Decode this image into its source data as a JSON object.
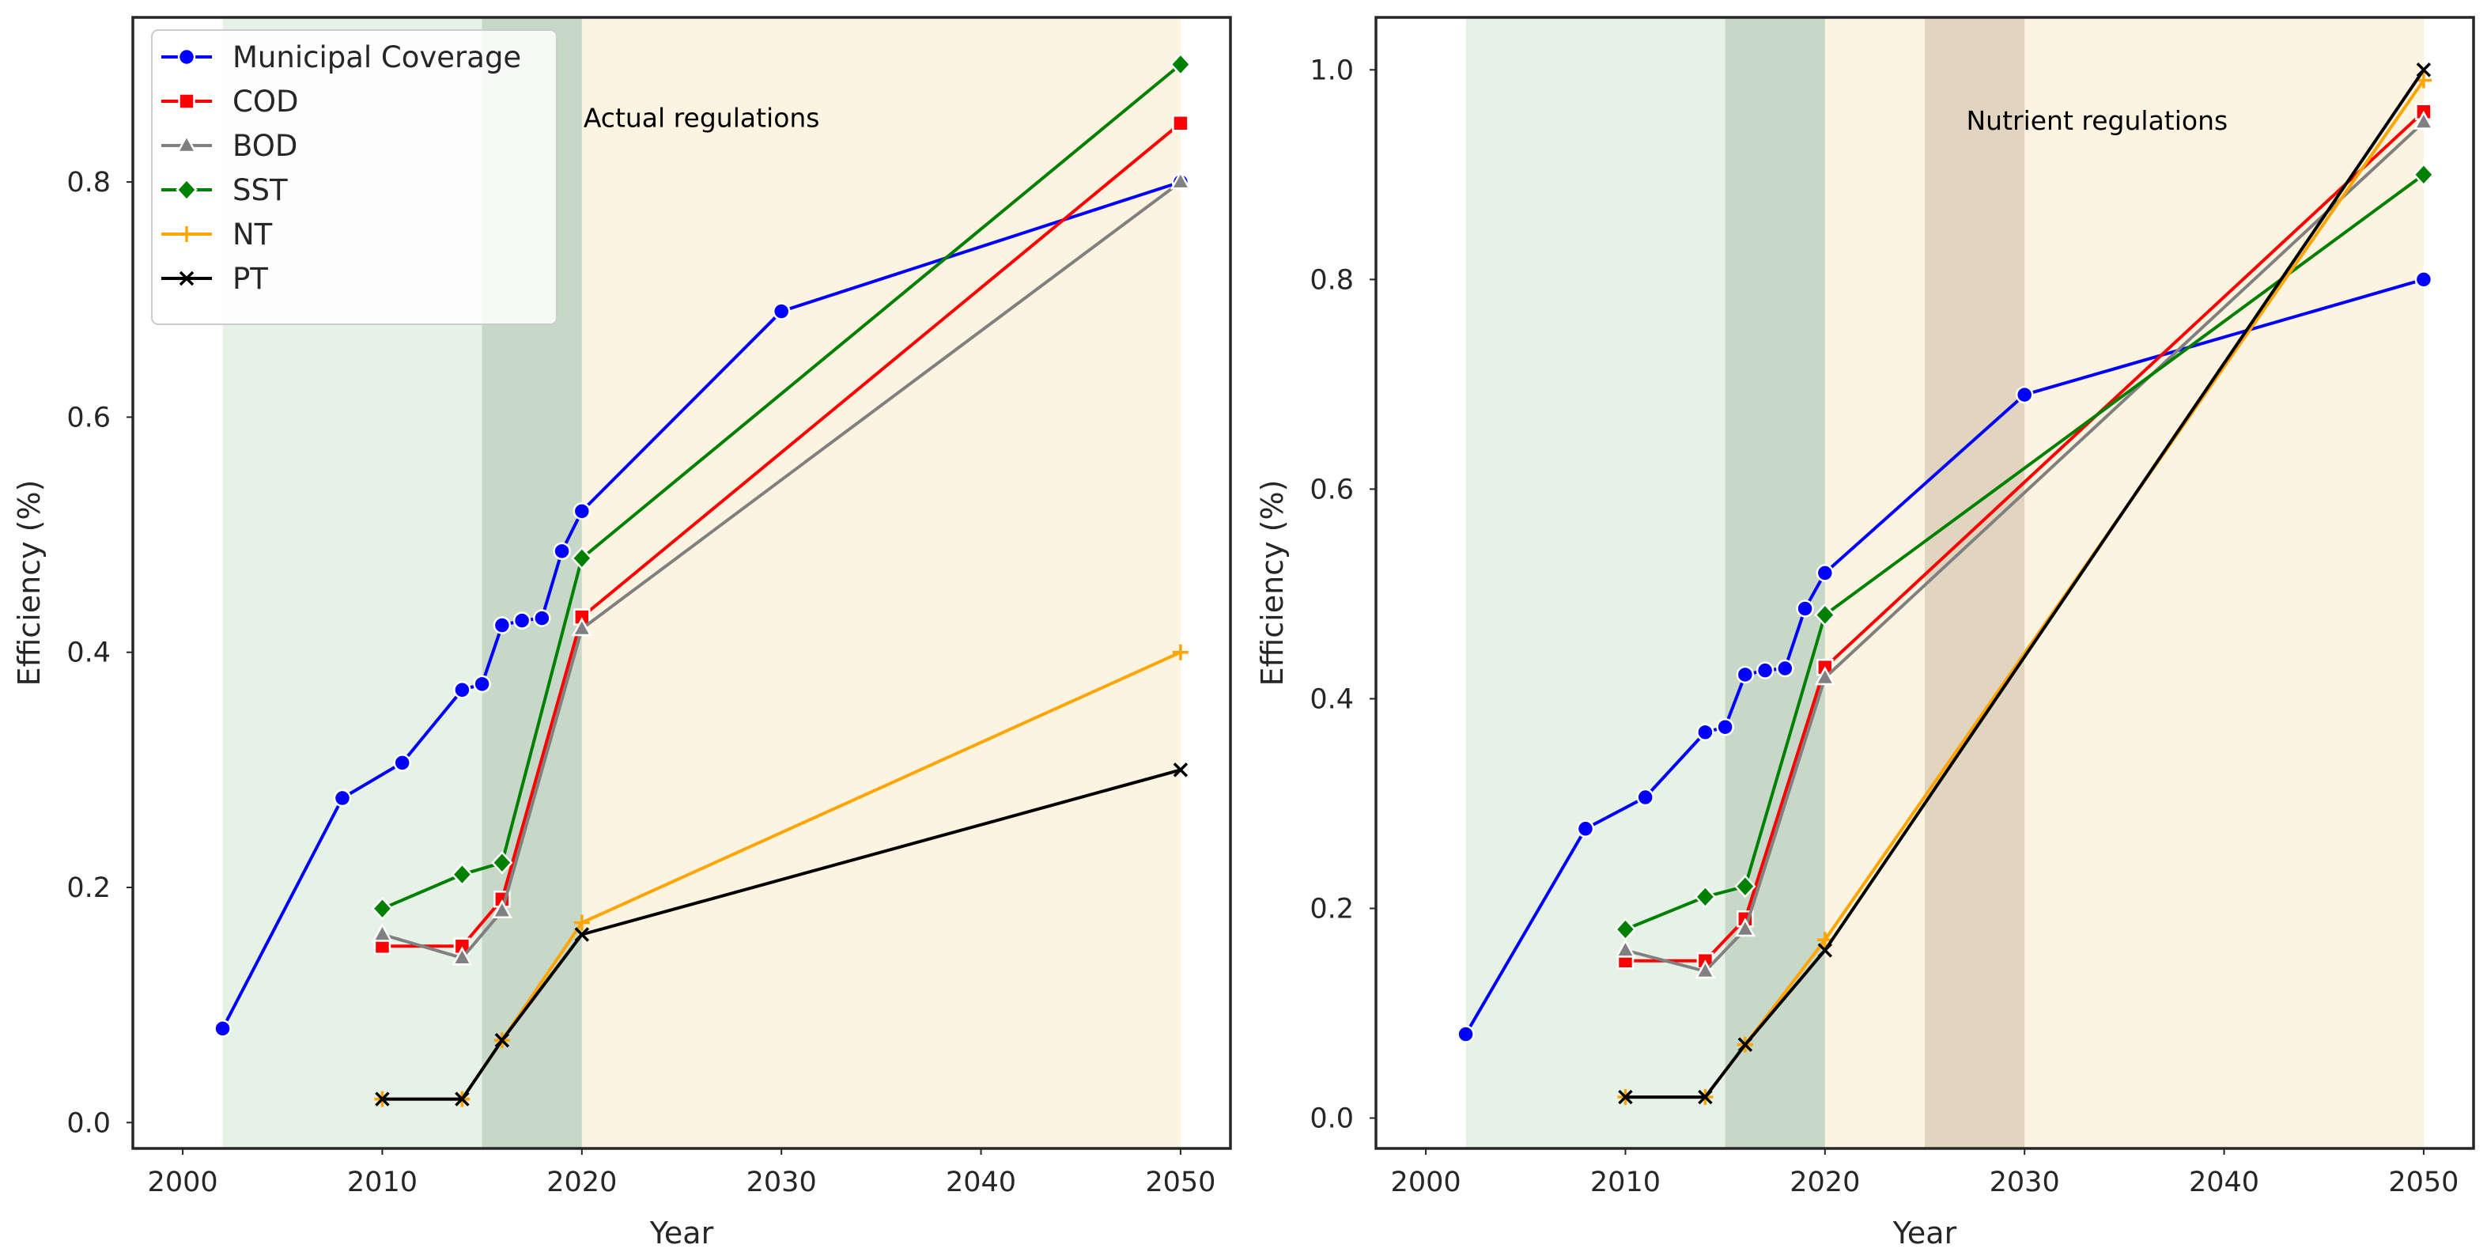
{
  "chart_data": [
    {
      "type": "line",
      "xlabel": "Year",
      "ylabel": "Efficiency (%)",
      "xlim": [
        1997.5,
        2052.5
      ],
      "ylim": [
        -0.022,
        0.94
      ],
      "xticks": [
        2000,
        2010,
        2020,
        2030,
        2040,
        2050
      ],
      "xtick_labels": [
        "2000",
        "2010",
        "2020",
        "2030",
        "2040",
        "2050"
      ],
      "yticks": [
        0.0,
        0.2,
        0.4,
        0.6,
        0.8
      ],
      "ytick_labels": [
        "0.0",
        "0.2",
        "0.4",
        "0.6",
        "0.8"
      ],
      "grid": false,
      "legend_position": "top-left",
      "spans": [
        {
          "from": 2002,
          "to": 2020,
          "color": "#b8d9b8",
          "opacity": 0.35
        },
        {
          "from": 2015,
          "to": 2020,
          "color": "#8fa88f",
          "opacity": 0.35
        },
        {
          "from": 2020,
          "to": 2050,
          "color": "#fbe5bd",
          "opacity": 0.45
        }
      ],
      "annotation": {
        "text": "Actual regulations",
        "x": 2020,
        "y": 0.855
      },
      "series": [
        {
          "name": "Municipal Coverage",
          "color": "#0000ff",
          "marker": "circle",
          "x": [
            2002,
            2008,
            2011,
            2014,
            2015,
            2016,
            2017,
            2018,
            2019,
            2020,
            2030,
            2050
          ],
          "y": [
            0.08,
            0.276,
            0.306,
            0.368,
            0.373,
            0.423,
            0.427,
            0.429,
            0.486,
            0.52,
            0.69,
            0.8
          ]
        },
        {
          "name": "COD",
          "color": "#ff0000",
          "marker": "square",
          "x": [
            2010,
            2014,
            2016,
            2020,
            2050
          ],
          "y": [
            0.15,
            0.15,
            0.19,
            0.43,
            0.85
          ]
        },
        {
          "name": "BOD",
          "color": "#808080",
          "marker": "triangle",
          "x": [
            2010,
            2014,
            2016,
            2020,
            2050
          ],
          "y": [
            0.16,
            0.14,
            0.18,
            0.42,
            0.8
          ]
        },
        {
          "name": "SST",
          "color": "#008000",
          "marker": "diamond",
          "x": [
            2010,
            2014,
            2016,
            2020,
            2050
          ],
          "y": [
            0.182,
            0.211,
            0.221,
            0.48,
            0.9
          ]
        },
        {
          "name": "NT",
          "color": "#ffa500",
          "marker": "plus",
          "x": [
            2010,
            2014,
            2016,
            2020,
            2050
          ],
          "y": [
            0.02,
            0.02,
            0.07,
            0.17,
            0.4
          ]
        },
        {
          "name": "PT",
          "color": "#000000",
          "marker": "x",
          "x": [
            2010,
            2014,
            2016,
            2020,
            2050
          ],
          "y": [
            0.02,
            0.02,
            0.07,
            0.16,
            0.3
          ]
        }
      ]
    },
    {
      "type": "line",
      "xlabel": "Year",
      "ylabel": "Efficiency (%)",
      "xlim": [
        1997.5,
        2052.5
      ],
      "ylim": [
        -0.029,
        1.05
      ],
      "xticks": [
        2000,
        2010,
        2020,
        2030,
        2040,
        2050
      ],
      "xtick_labels": [
        "2000",
        "2010",
        "2020",
        "2030",
        "2040",
        "2050"
      ],
      "yticks": [
        0.0,
        0.2,
        0.4,
        0.6,
        0.8,
        1.0
      ],
      "ytick_labels": [
        "0.0",
        "0.2",
        "0.4",
        "0.6",
        "0.8",
        "1.0"
      ],
      "grid": false,
      "legend_position": "none",
      "spans": [
        {
          "from": 2002,
          "to": 2020,
          "color": "#b8d9b8",
          "opacity": 0.35
        },
        {
          "from": 2015,
          "to": 2020,
          "color": "#8fa88f",
          "opacity": 0.35
        },
        {
          "from": 2020,
          "to": 2050,
          "color": "#fbe5bd",
          "opacity": 0.45
        },
        {
          "from": 2025,
          "to": 2030,
          "color": "#b9a78f",
          "opacity": 0.4
        }
      ],
      "annotation": {
        "text": "Nutrient regulations",
        "x": 2027,
        "y": 0.952
      },
      "series": [
        {
          "name": "Municipal Coverage",
          "color": "#0000ff",
          "marker": "circle",
          "x": [
            2002,
            2008,
            2011,
            2014,
            2015,
            2016,
            2017,
            2018,
            2019,
            2020,
            2030,
            2050
          ],
          "y": [
            0.08,
            0.276,
            0.306,
            0.368,
            0.373,
            0.423,
            0.427,
            0.429,
            0.486,
            0.52,
            0.69,
            0.8
          ]
        },
        {
          "name": "COD",
          "color": "#ff0000",
          "marker": "square",
          "x": [
            2010,
            2014,
            2016,
            2020,
            2050
          ],
          "y": [
            0.15,
            0.15,
            0.19,
            0.43,
            0.96
          ]
        },
        {
          "name": "BOD",
          "color": "#808080",
          "marker": "triangle",
          "x": [
            2010,
            2014,
            2016,
            2020,
            2050
          ],
          "y": [
            0.16,
            0.14,
            0.18,
            0.42,
            0.95
          ]
        },
        {
          "name": "SST",
          "color": "#008000",
          "marker": "diamond",
          "x": [
            2010,
            2014,
            2016,
            2020,
            2050
          ],
          "y": [
            0.18,
            0.211,
            0.221,
            0.48,
            0.9
          ]
        },
        {
          "name": "NT",
          "color": "#ffa500",
          "marker": "plus",
          "x": [
            2010,
            2014,
            2016,
            2020,
            2050
          ],
          "y": [
            0.02,
            0.02,
            0.07,
            0.17,
            0.99
          ]
        },
        {
          "name": "PT",
          "color": "#000000",
          "marker": "x",
          "x": [
            2010,
            2014,
            2016,
            2020,
            2050
          ],
          "y": [
            0.02,
            0.02,
            0.07,
            0.16,
            1.0
          ]
        }
      ]
    }
  ]
}
